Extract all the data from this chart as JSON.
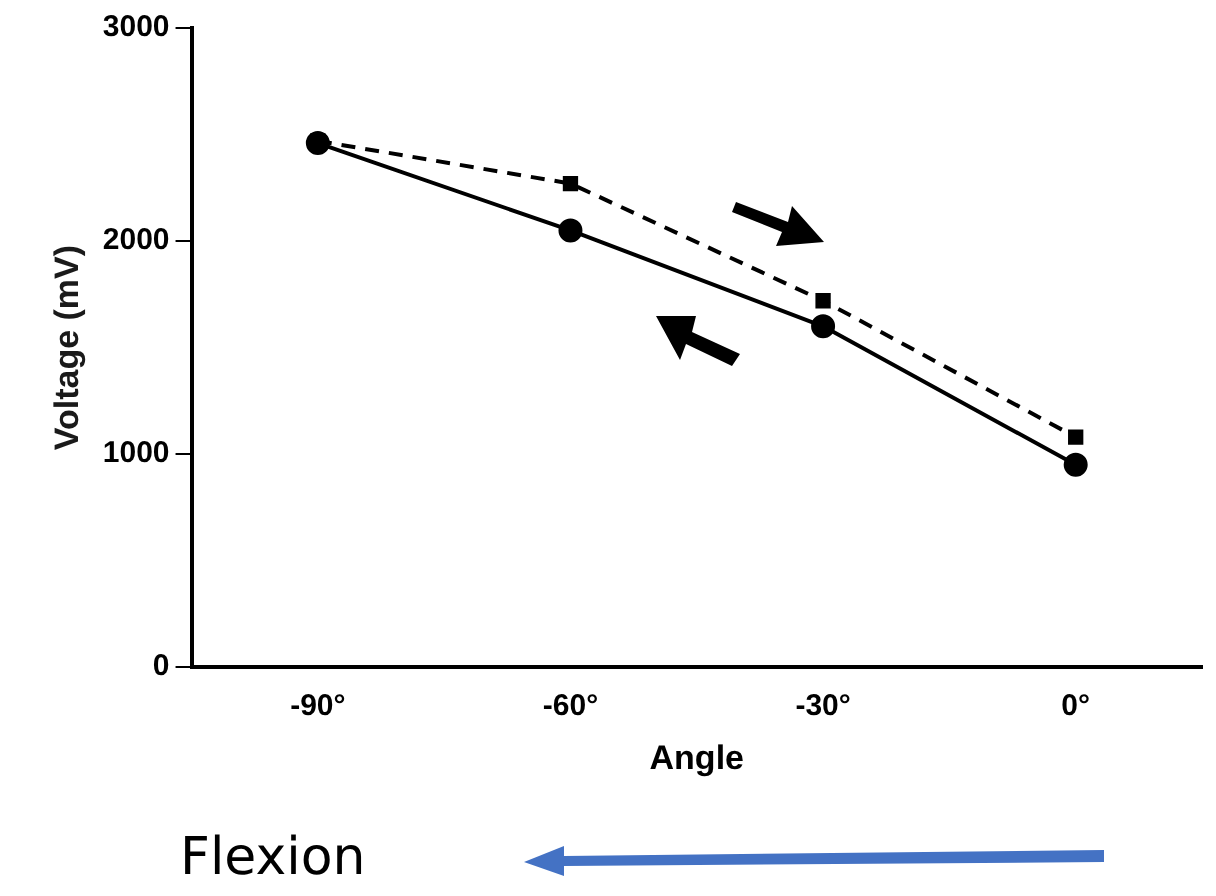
{
  "chart_data": {
    "type": "line",
    "categories": [
      "-90°",
      "-60°",
      "-30°",
      "0°"
    ],
    "xlabel": "Angle",
    "ylabel": "Voltage (mV)",
    "ylim": [
      0,
      3000
    ],
    "yticks": [
      0,
      1000,
      2000,
      3000
    ],
    "grid": false,
    "legend": false,
    "series": [
      {
        "color": "#000000",
        "values": [
          2460,
          2050,
          1600,
          950
        ],
        "marker": "circle",
        "line_style": "solid"
      },
      {
        "color": "#000000",
        "values": [
          2470,
          2270,
          1720,
          1080
        ],
        "marker": "square",
        "line_style": "dashed"
      }
    ],
    "annotations": [
      "Flexion"
    ]
  }
}
